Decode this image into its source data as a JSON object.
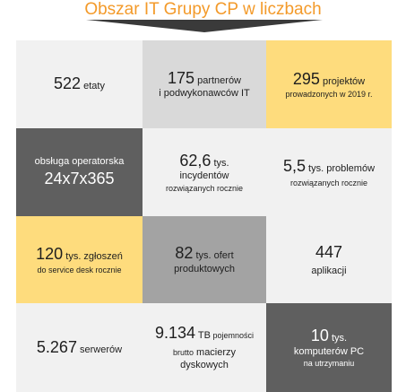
{
  "title": "Obszar IT Grupy CP w liczbach",
  "colors": {
    "title": "#f39a2a",
    "yellow": "#fedc7d",
    "dark": "#5f5f5f",
    "gray": "#a3a3a3",
    "light": "#f1f1f1",
    "mid": "#d9d9d9"
  },
  "tiles": [
    {
      "line1": {
        "big": "522",
        "med": " etaty"
      }
    },
    {
      "line1": {
        "big": "175",
        "med": " partnerów"
      },
      "line2": {
        "med": "i podwykonawców IT"
      }
    },
    {
      "line1": {
        "big": "295",
        "med": " projektów"
      },
      "line2": {
        "sm": "prowadzonych w 2019 r."
      }
    },
    {
      "line1": {
        "med": "obsługa operatorska"
      },
      "line2": {
        "big": "24x7x365"
      }
    },
    {
      "line1": {
        "big": "62,6",
        "med": " tys."
      },
      "line2": {
        "med": "incydentów"
      },
      "line3": {
        "sm": "rozwiązanych rocznie"
      }
    },
    {
      "line1": {
        "big": "5,5",
        "med": " tys. problemów"
      },
      "line2": {
        "sm": "rozwiązanych rocznie"
      }
    },
    {
      "line1": {
        "big": "120",
        "med": " tys. zgłoszeń"
      },
      "line2": {
        "sm": "do service desk rocznie"
      }
    },
    {
      "line1": {
        "big": "82",
        "med": " tys. ofert"
      },
      "line2": {
        "med": "produktowych"
      }
    },
    {
      "line1": {
        "big": "447"
      },
      "line2": {
        "med": "aplikacji"
      }
    },
    {
      "line1": {
        "big": "5.267",
        "med": " serwerów"
      }
    },
    {
      "line1": {
        "big": "9.134",
        "med": " TB",
        "sm": " pojemności"
      },
      "line2": {
        "sm": "brutto",
        "med": " macierzy"
      },
      "line3": {
        "med": "dyskowych"
      }
    },
    {
      "line1": {
        "big": "10",
        "med": " tys."
      },
      "line2": {
        "med": "komputerów PC"
      },
      "line3": {
        "sm": "na utrzymaniu"
      }
    }
  ]
}
